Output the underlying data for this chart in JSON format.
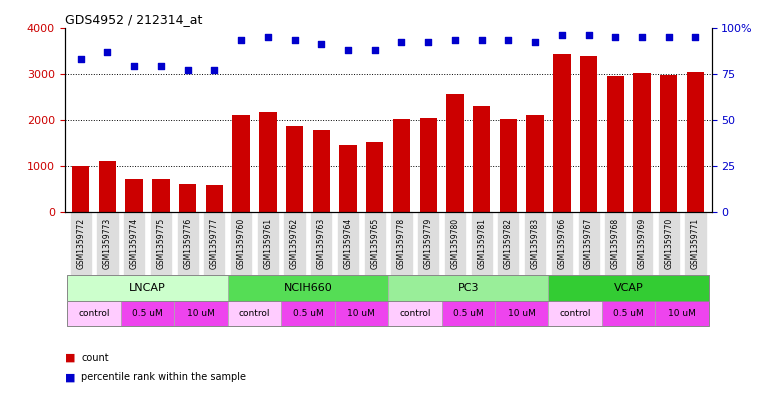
{
  "title": "GDS4952 / 212314_at",
  "samples": [
    "GSM1359772",
    "GSM1359773",
    "GSM1359774",
    "GSM1359775",
    "GSM1359776",
    "GSM1359777",
    "GSM1359760",
    "GSM1359761",
    "GSM1359762",
    "GSM1359763",
    "GSM1359764",
    "GSM1359765",
    "GSM1359778",
    "GSM1359779",
    "GSM1359780",
    "GSM1359781",
    "GSM1359782",
    "GSM1359783",
    "GSM1359766",
    "GSM1359767",
    "GSM1359768",
    "GSM1359769",
    "GSM1359770",
    "GSM1359771"
  ],
  "counts": [
    1000,
    1100,
    730,
    720,
    610,
    590,
    2100,
    2170,
    1860,
    1780,
    1450,
    1530,
    2020,
    2050,
    2560,
    2300,
    2020,
    2100,
    3420,
    3380,
    2960,
    3020,
    2980,
    3030
  ],
  "percentile_ranks": [
    83,
    87,
    79,
    79,
    77,
    77,
    93,
    95,
    93,
    91,
    88,
    88,
    92,
    92,
    93,
    93,
    93,
    92,
    96,
    96,
    95,
    95,
    95,
    95
  ],
  "bar_color": "#cc0000",
  "dot_color": "#0000cc",
  "ylim_left": [
    0,
    4000
  ],
  "ylim_right": [
    0,
    100
  ],
  "yticks_left": [
    0,
    1000,
    2000,
    3000,
    4000
  ],
  "yticks_right": [
    0,
    25,
    50,
    75,
    100
  ],
  "yticklabels_right": [
    "0",
    "25",
    "50",
    "75",
    "100%"
  ],
  "cell_lines": [
    {
      "label": "LNCAP",
      "start": 0,
      "end": 6,
      "color": "#ccffcc"
    },
    {
      "label": "NCIH660",
      "start": 6,
      "end": 12,
      "color": "#55dd55"
    },
    {
      "label": "PC3",
      "start": 12,
      "end": 18,
      "color": "#99ee99"
    },
    {
      "label": "VCAP",
      "start": 18,
      "end": 24,
      "color": "#33cc33"
    }
  ],
  "dose_blocks": [
    {
      "label": "control",
      "start": 0,
      "end": 2,
      "color": "#ffccff"
    },
    {
      "label": "0.5 uM",
      "start": 2,
      "end": 4,
      "color": "#ee44ee"
    },
    {
      "label": "10 uM",
      "start": 4,
      "end": 6,
      "color": "#ee44ee"
    },
    {
      "label": "control",
      "start": 6,
      "end": 8,
      "color": "#ffccff"
    },
    {
      "label": "0.5 uM",
      "start": 8,
      "end": 10,
      "color": "#ee44ee"
    },
    {
      "label": "10 uM",
      "start": 10,
      "end": 12,
      "color": "#ee44ee"
    },
    {
      "label": "control",
      "start": 12,
      "end": 14,
      "color": "#ffccff"
    },
    {
      "label": "0.5 uM",
      "start": 14,
      "end": 16,
      "color": "#ee44ee"
    },
    {
      "label": "10 uM",
      "start": 16,
      "end": 18,
      "color": "#ee44ee"
    },
    {
      "label": "control",
      "start": 18,
      "end": 20,
      "color": "#ffccff"
    },
    {
      "label": "0.5 uM",
      "start": 20,
      "end": 22,
      "color": "#ee44ee"
    },
    {
      "label": "10 uM",
      "start": 22,
      "end": 24,
      "color": "#ee44ee"
    }
  ],
  "bg_color": "#ffffff",
  "label_color_left": "#cc0000",
  "label_color_right": "#0000cc",
  "tick_label_bg": "#dddddd"
}
